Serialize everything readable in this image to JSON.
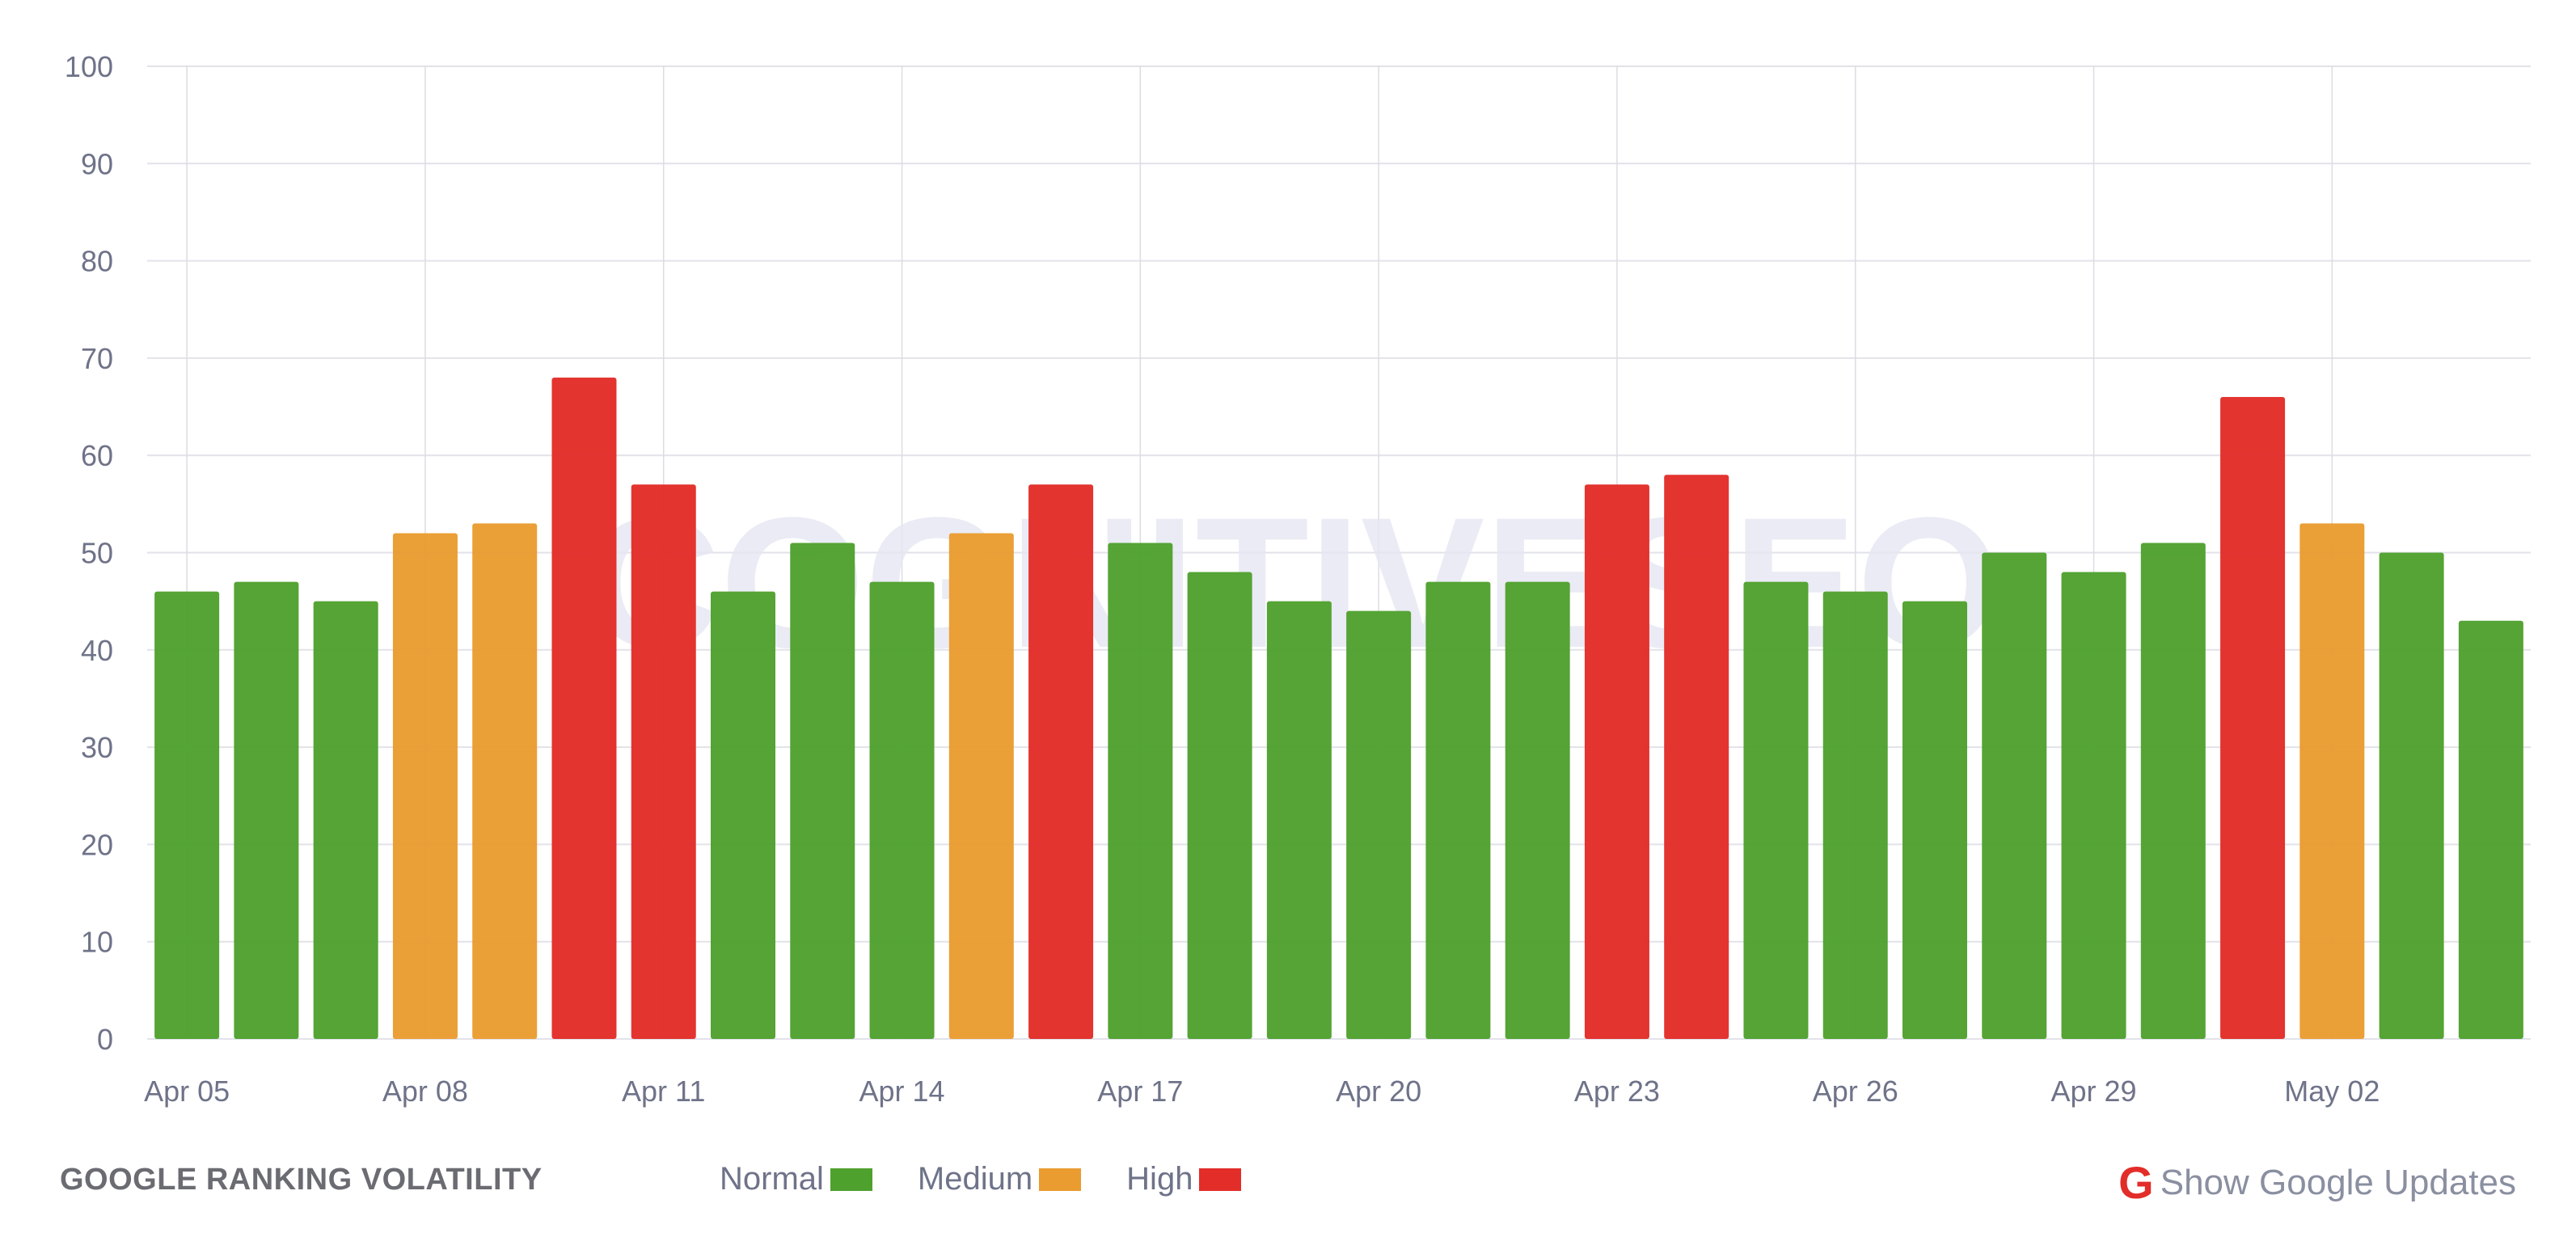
{
  "chart_data": {
    "type": "bar",
    "title": "GOOGLE RANKING VOLATILITY",
    "categories": [
      "Apr 05",
      "Apr 06",
      "Apr 07",
      "Apr 08",
      "Apr 09",
      "Apr 10",
      "Apr 11",
      "Apr 12",
      "Apr 13",
      "Apr 14",
      "Apr 15",
      "Apr 16",
      "Apr 17",
      "Apr 18",
      "Apr 19",
      "Apr 20",
      "Apr 21",
      "Apr 22",
      "Apr 23",
      "Apr 24",
      "Apr 25",
      "Apr 26",
      "Apr 27",
      "Apr 28",
      "Apr 29",
      "Apr 30",
      "May 01",
      "May 02",
      "May 03",
      "May 04"
    ],
    "values": [
      46,
      47,
      45,
      52,
      53,
      68,
      57,
      46,
      51,
      47,
      52,
      57,
      51,
      48,
      45,
      44,
      47,
      47,
      57,
      58,
      47,
      46,
      45,
      50,
      48,
      51,
      66,
      53,
      50,
      43
    ],
    "levels": [
      "Normal",
      "Normal",
      "Normal",
      "Medium",
      "Medium",
      "High",
      "High",
      "Normal",
      "Normal",
      "Normal",
      "Medium",
      "High",
      "Normal",
      "Normal",
      "Normal",
      "Normal",
      "Normal",
      "Normal",
      "High",
      "High",
      "Normal",
      "Normal",
      "Normal",
      "Normal",
      "Normal",
      "Normal",
      "High",
      "Medium",
      "Normal",
      "Normal"
    ],
    "x_tick_labels": [
      "Apr 05",
      "Apr 08",
      "Apr 11",
      "Apr 14",
      "Apr 17",
      "Apr 20",
      "Apr 23",
      "Apr 26",
      "Apr 29",
      "May 02"
    ],
    "y_ticks": [
      0,
      10,
      20,
      30,
      40,
      50,
      60,
      70,
      80,
      90,
      100
    ],
    "ylim": [
      0,
      100
    ],
    "grid": true,
    "xlabel": "",
    "ylabel": "",
    "legend_placement": "bottom",
    "legend": [
      {
        "name": "Normal",
        "color": "#4fa12e"
      },
      {
        "name": "Medium",
        "color": "#ea9c31"
      },
      {
        "name": "High",
        "color": "#e22d29"
      }
    ],
    "watermark": "COGNITIVESEO"
  },
  "footer": {
    "title": "GOOGLE RANKING VOLATILITY",
    "show_updates_label": "Show Google Updates",
    "google_icon": "G"
  }
}
